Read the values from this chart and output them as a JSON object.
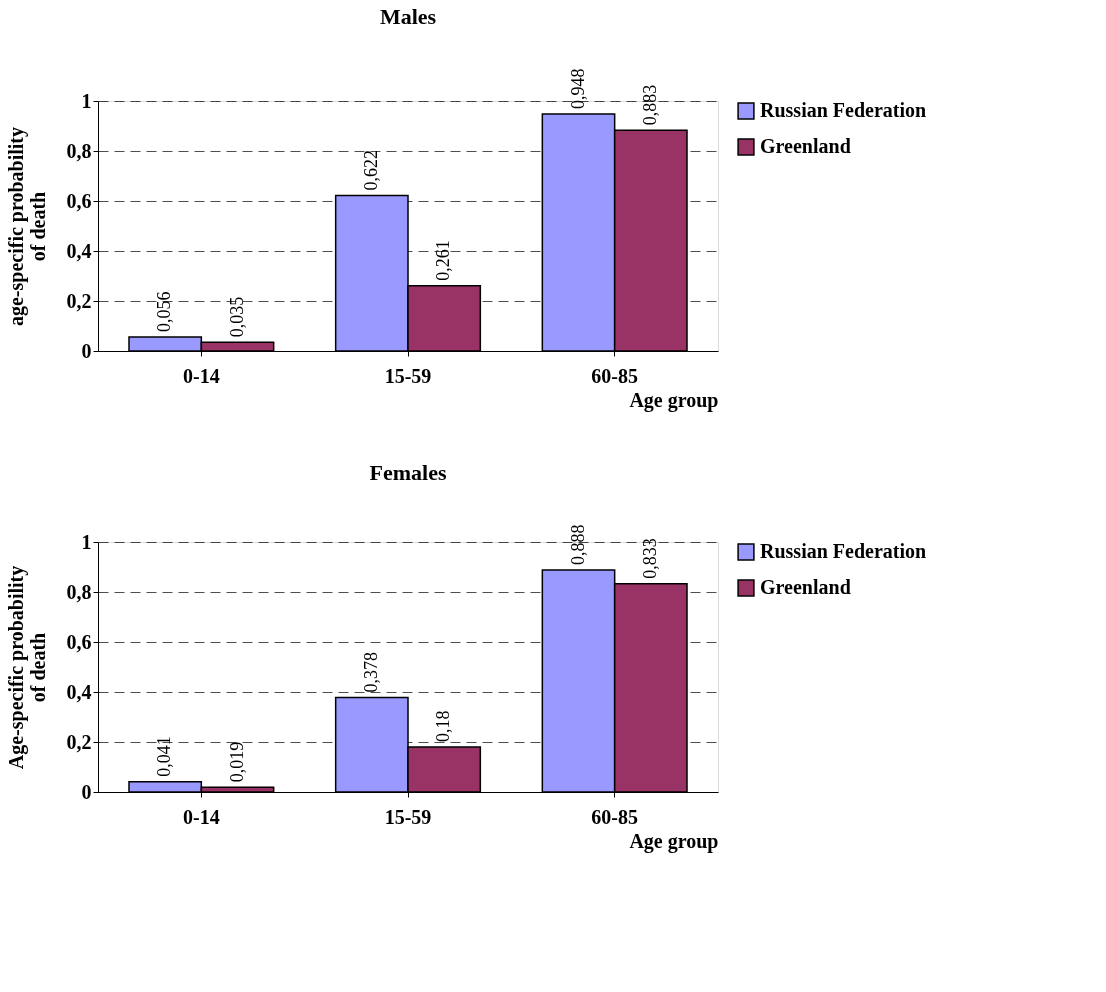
{
  "chart_data": [
    {
      "type": "bar",
      "title": "Males",
      "xlabel": "Age group",
      "ylabel": "age-specific probability of death",
      "categories": [
        "0-14",
        "15-59",
        "60-85"
      ],
      "series": [
        {
          "name": "Russian Federation",
          "color": "#9999ff",
          "values": [
            0.056,
            0.622,
            0.948
          ],
          "value_labels": [
            "0,056",
            "0,622",
            "0,948"
          ]
        },
        {
          "name": "Greenland",
          "color": "#993366",
          "values": [
            0.035,
            0.261,
            0.883
          ],
          "value_labels": [
            "0,035",
            "0,261",
            "0,883"
          ]
        }
      ],
      "ylim": [
        0,
        1
      ],
      "yticks": [
        0,
        {
          "value": 0.2,
          "label": "0,2"
        },
        {
          "value": 0.4,
          "label": "0,4"
        },
        {
          "value": 0.6,
          "label": "0,6"
        },
        {
          "value": 0.8,
          "label": "0,8"
        },
        1
      ],
      "grid": "y",
      "legend": "right"
    },
    {
      "type": "bar",
      "title": "Females",
      "xlabel": "Age group",
      "ylabel": "Age-specific probability of death",
      "categories": [
        "0-14",
        "15-59",
        "60-85"
      ],
      "series": [
        {
          "name": "Russian Federation",
          "color": "#9999ff",
          "values": [
            0.041,
            0.378,
            0.888
          ],
          "value_labels": [
            "0,041",
            "0,378",
            "0,888"
          ]
        },
        {
          "name": "Greenland",
          "color": "#993366",
          "values": [
            0.019,
            0.18,
            0.833
          ],
          "value_labels": [
            "0,019",
            "0,18",
            "0,833"
          ]
        }
      ],
      "ylim": [
        0,
        1
      ],
      "yticks": [
        0,
        {
          "value": 0.2,
          "label": "0,2"
        },
        {
          "value": 0.4,
          "label": "0,4"
        },
        {
          "value": 0.6,
          "label": "0,6"
        },
        {
          "value": 0.8,
          "label": "0,8"
        },
        1
      ],
      "grid": "y",
      "legend": "right"
    }
  ]
}
